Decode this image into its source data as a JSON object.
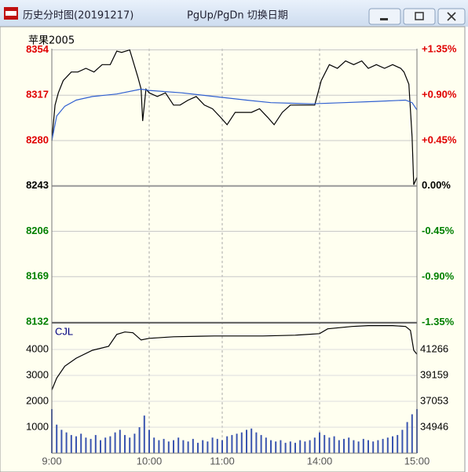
{
  "window": {
    "title": "历史分时图(20191217)",
    "hint": "PgUp/PgDn 切换日期"
  },
  "chart_data": [
    {
      "type": "line",
      "title": "苹果2005",
      "xlim": [
        0,
        225
      ],
      "ylim": [
        8132,
        8355
      ],
      "y2lim": [
        -1.3466,
        1.3587
      ],
      "yticks": [
        8354,
        8317,
        8280,
        8243,
        8206,
        8169,
        8132
      ],
      "y2ticks": [
        {
          "value": 1.35,
          "label": "+1.35%"
        },
        {
          "value": 0.9,
          "label": "+0.90%"
        },
        {
          "value": 0.45,
          "label": "+0.45%"
        },
        {
          "value": 0,
          "label": "0.00%"
        },
        {
          "value": -0.45,
          "label": "-0.45%"
        },
        {
          "value": -0.9,
          "label": "-0.90%"
        },
        {
          "value": -1.35,
          "label": "-1.35%"
        }
      ],
      "up_color": "#e00000",
      "down_color": "#008000",
      "flat_color": "#000000",
      "grid": true,
      "series": [
        {
          "color": "#000000",
          "x": [
            0,
            2,
            4,
            7,
            12,
            16,
            21,
            26,
            31,
            36,
            40,
            43,
            48,
            53,
            55,
            56,
            58,
            60,
            65,
            70,
            75,
            79,
            84,
            89,
            94,
            99,
            104,
            108,
            113,
            118,
            123,
            128,
            133,
            137,
            142,
            147,
            152,
            157,
            162,
            166,
            171,
            176,
            181,
            186,
            191,
            195,
            200,
            205,
            210,
            215,
            217,
            220,
            222,
            223,
            225
          ],
          "values": [
            8280,
            8309,
            8319,
            8329,
            8336,
            8336,
            8339,
            8336,
            8342,
            8342,
            8353,
            8352,
            8354,
            8332,
            8322,
            8296,
            8322,
            8319,
            8316,
            8319,
            8309,
            8309,
            8313,
            8316,
            8309,
            8306,
            8299,
            8293,
            8303,
            8303,
            8303,
            8306,
            8299,
            8293,
            8303,
            8309,
            8309,
            8309,
            8309,
            8329,
            8342,
            8339,
            8345,
            8342,
            8345,
            8339,
            8342,
            8339,
            8342,
            8339,
            8336,
            8326,
            8283,
            8244,
            8250
          ]
        },
        {
          "color": "#2f5fd0",
          "x": [
            0,
            3,
            8,
            15,
            25,
            40,
            55,
            60,
            80,
            100,
            120,
            135,
            160,
            180,
            200,
            218,
            222,
            225
          ],
          "values": [
            8280,
            8300,
            8308,
            8313,
            8316,
            8318,
            8322,
            8321,
            8319,
            8316,
            8313,
            8311,
            8310,
            8311,
            8312,
            8313,
            8311,
            8305
          ]
        }
      ]
    },
    {
      "type": "bar",
      "title": "CJL",
      "color": "#3a55b0",
      "xlim": [
        0,
        225
      ],
      "xticks": [
        {
          "value": 0,
          "label": "9:00"
        },
        {
          "value": 60,
          "label": "10:00"
        },
        {
          "value": 105,
          "label": "11:00"
        },
        {
          "value": 165,
          "label": "14:00"
        },
        {
          "value": 225,
          "label": "15:00"
        }
      ],
      "ylim": [
        0,
        5000
      ],
      "yticks": [
        4000,
        3000,
        2000,
        1000
      ],
      "y2lim": [
        32839,
        43373
      ],
      "y2ticks": [
        41266,
        39159,
        37053,
        34946
      ],
      "grid": true,
      "x": [
        0,
        3,
        6,
        9,
        12,
        15,
        18,
        21,
        24,
        27,
        30,
        33,
        36,
        39,
        42,
        45,
        48,
        51,
        54,
        57,
        60,
        63,
        66,
        69,
        72,
        75,
        78,
        81,
        84,
        87,
        90,
        93,
        96,
        99,
        102,
        105,
        108,
        111,
        114,
        117,
        120,
        123,
        126,
        129,
        132,
        135,
        138,
        141,
        144,
        147,
        150,
        153,
        156,
        159,
        162,
        165,
        168,
        171,
        174,
        177,
        180,
        183,
        186,
        189,
        192,
        195,
        198,
        201,
        204,
        207,
        210,
        213,
        216,
        219,
        222,
        225
      ],
      "values": [
        1700,
        1100,
        900,
        800,
        700,
        650,
        750,
        600,
        550,
        700,
        500,
        600,
        650,
        800,
        900,
        700,
        600,
        750,
        1000,
        1450,
        900,
        600,
        500,
        550,
        450,
        500,
        600,
        500,
        450,
        550,
        400,
        500,
        450,
        600,
        550,
        500,
        650,
        700,
        750,
        800,
        900,
        950,
        800,
        700,
        600,
        500,
        450,
        500,
        400,
        450,
        400,
        500,
        450,
        500,
        600,
        800,
        700,
        600,
        650,
        500,
        550,
        600,
        500,
        450,
        550,
        500,
        450,
        500,
        550,
        600,
        650,
        700,
        900,
        1200,
        1500,
        1700
      ],
      "series": [
        {
          "axis": "y2",
          "color": "#000000",
          "x": [
            0,
            3,
            8,
            15,
            25,
            35,
            40,
            45,
            50,
            55,
            60,
            75,
            100,
            130,
            150,
            165,
            170,
            185,
            195,
            210,
            218,
            221,
            223,
            225
          ],
          "values": [
            37971,
            38940,
            39909,
            40555,
            41201,
            41524,
            42493,
            42687,
            42623,
            42041,
            42170,
            42300,
            42364,
            42364,
            42429,
            42558,
            42946,
            43139,
            43204,
            43204,
            43139,
            42816,
            41201,
            40878
          ]
        }
      ]
    }
  ]
}
